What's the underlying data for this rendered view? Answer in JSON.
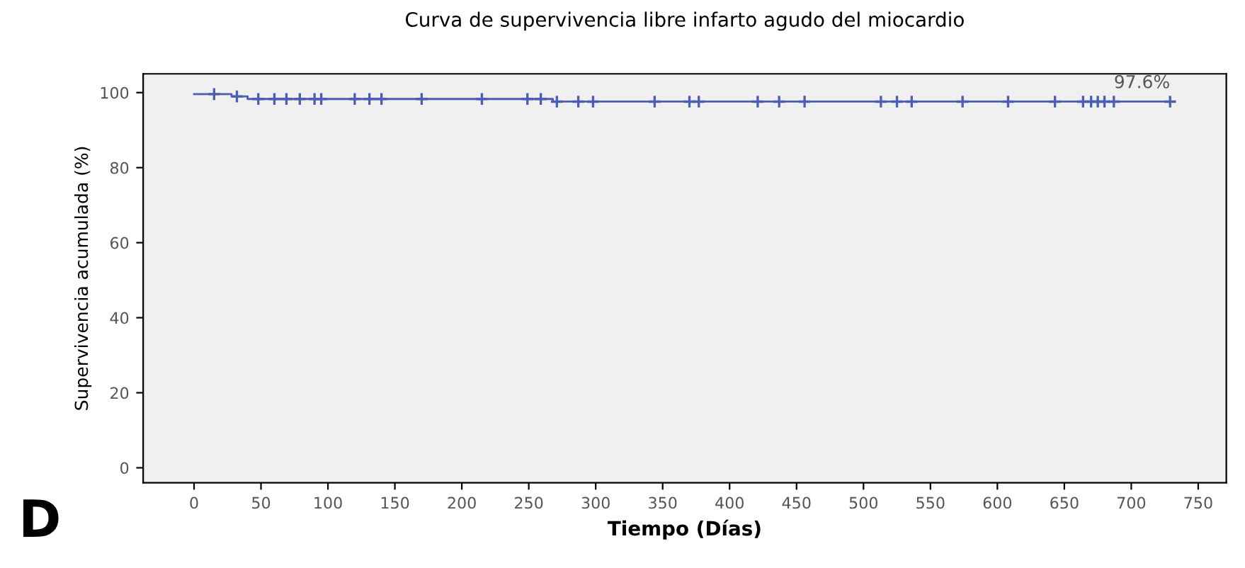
{
  "chart_data": {
    "type": "step",
    "title": "Curva de supervivencia libre infarto agudo del miocardio",
    "xlabel": "Tiempo (Días)",
    "ylabel": "Supervivencia acumulada (%)",
    "series": [
      {
        "color": "#4a5fb0",
        "x": [
          0,
          28,
          40,
          268,
          729
        ],
        "values": [
          99.6,
          99.0,
          98.3,
          97.6,
          97.6
        ]
      },
      {
        "type": "scatter",
        "marker": "cross",
        "color": "#4a5fb0",
        "x": [
          15,
          32,
          48,
          60,
          69,
          79,
          90,
          95,
          120,
          131,
          140,
          170,
          215,
          249,
          259,
          271,
          287,
          298,
          344,
          370,
          377,
          421,
          437,
          456,
          513,
          525,
          536,
          574,
          608,
          643,
          664,
          670,
          675,
          680,
          687,
          729
        ],
        "values": [
          99.6,
          99.0,
          98.3,
          98.3,
          98.3,
          98.3,
          98.3,
          98.3,
          98.3,
          98.3,
          98.3,
          98.3,
          98.3,
          98.3,
          98.3,
          97.6,
          97.6,
          97.6,
          97.6,
          97.6,
          97.6,
          97.6,
          97.6,
          97.6,
          97.6,
          97.6,
          97.6,
          97.6,
          97.6,
          97.6,
          97.6,
          97.6,
          97.6,
          97.6,
          97.6,
          97.6
        ]
      }
    ],
    "annotations": [
      {
        "text": "97.6%",
        "x": 729,
        "y": 97.6
      },
      "D"
    ],
    "xlim": [
      -38,
      771
    ],
    "ylim": [
      -4,
      105
    ],
    "xticks": [
      0,
      50,
      100,
      150,
      200,
      250,
      300,
      350,
      400,
      450,
      500,
      550,
      600,
      650,
      700,
      750
    ],
    "yticks": [
      0,
      20,
      40,
      60,
      80,
      100
    ],
    "grid": false,
    "legend": false
  }
}
